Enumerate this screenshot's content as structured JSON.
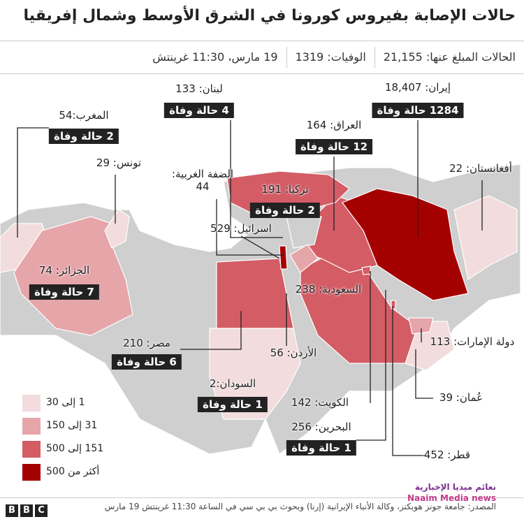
{
  "header": {
    "title": "حالات الإصابة بفيروس كورونا في الشرق الأوسط وشمال إفريقيا",
    "stats": [
      "الحالات المبلغ عنها: 21,155",
      "الوفيات: 1319",
      "19 مارس، 11:30 غرينتش"
    ]
  },
  "countries": [
    {
      "label": "إيران: 18,407",
      "deaths": "1284 حالة وفاة"
    },
    {
      "label": "لبنان: 133",
      "deaths": "4 حالة وفاة"
    },
    {
      "label": "المغرب:54",
      "deaths": "2 حالة وفاة"
    },
    {
      "label": "العراق: 164",
      "deaths": "12 حالة وفاة"
    },
    {
      "label": "تونس: 29"
    },
    {
      "label": "أفغانستان: 22"
    },
    {
      "label": "الضفة الغربية: 44"
    },
    {
      "label": "تركيا: 191",
      "deaths": "2 حالة وفاة"
    },
    {
      "label": "اسرائيل: 529"
    },
    {
      "label": "الجزائر: 74",
      "deaths": "7 حالة وفاة"
    },
    {
      "label": "السعودية: 238"
    },
    {
      "label": "مصر: 210",
      "deaths": "6 حالة وفاة"
    },
    {
      "label": "الأردن: 56"
    },
    {
      "label": "دولة الإمارات: 113"
    },
    {
      "label": "السودان:2",
      "deaths": "1 حالة وفاة"
    },
    {
      "label": "الكويت: 142"
    },
    {
      "label": "عُمان: 39"
    },
    {
      "label": "البحرين: 256",
      "deaths": "1 حالة وفاة"
    },
    {
      "label": "قطر: 452"
    }
  ],
  "legend": [
    "1 إلى 30",
    "31 إلى 150",
    "151 إلى 500",
    "أكثر من 500"
  ],
  "footer": {
    "source": "المصدر: جامعة جونز هوبكنز، وكالة الأنباء الإيرانية (إرنا) وبحوث بي بي سي في الساعة 11:30 غرينتش 19 مارس",
    "logo": [
      "B",
      "B",
      "C"
    ],
    "watermark": [
      "نعائم ميديا الإخبارية",
      "Naaim Media news"
    ]
  }
}
